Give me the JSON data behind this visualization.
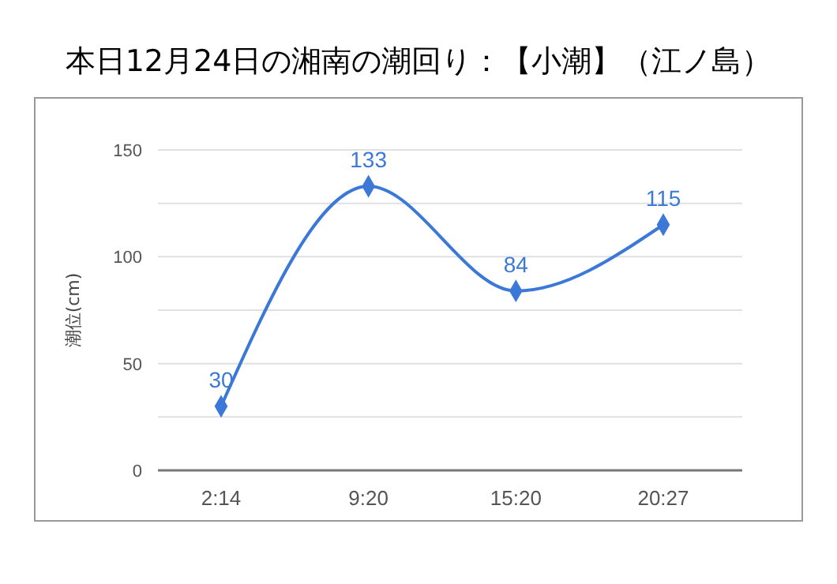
{
  "chart_data": {
    "type": "line",
    "title": "本日12月24日の湘南の潮回り：【小潮】（江ノ島）",
    "ylabel": "潮位(cm)",
    "categories": [
      "2:14",
      "9:20",
      "15:20",
      "20:27"
    ],
    "series": [
      {
        "color": "#3c78d8",
        "values": [
          30,
          133,
          84,
          115
        ]
      }
    ],
    "ylim": [
      0,
      150
    ],
    "yticks": [
      0,
      {
        "value": 25,
        "label": null
      },
      50,
      {
        "value": 75,
        "label": null
      },
      100,
      {
        "value": 125,
        "label": null
      },
      150
    ],
    "grid": "y",
    "marker": "diamond",
    "line_style": "solid",
    "data_labels": true
  }
}
